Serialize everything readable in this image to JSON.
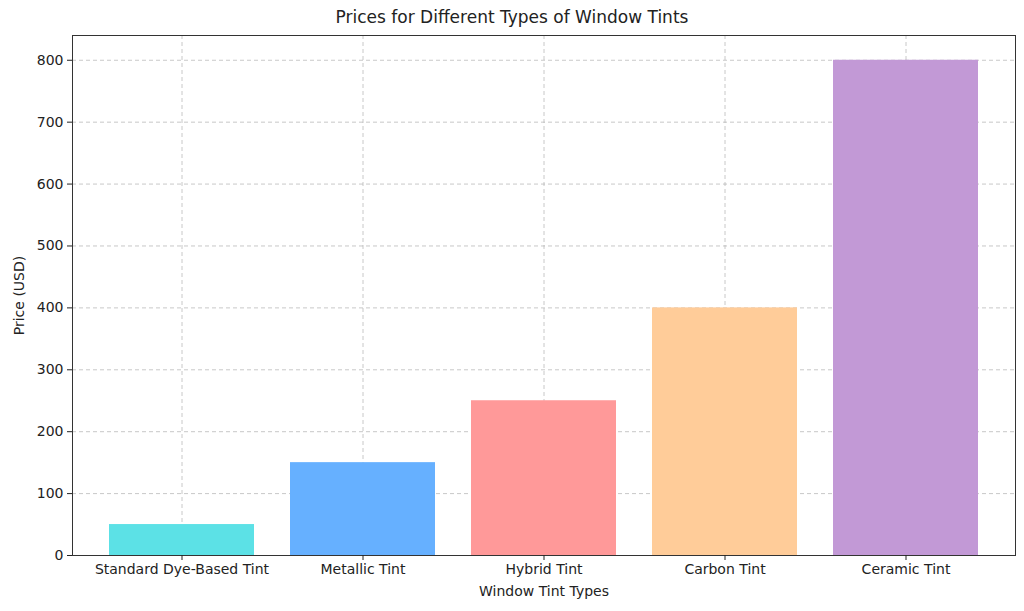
{
  "chart_data": {
    "type": "bar",
    "title": "Prices for Different Types of Window Tints",
    "x_label": "Window Tint Types",
    "y_label": "Price (USD)",
    "categories": [
      "Standard Dye-Based Tint",
      "Metallic Tint",
      "Hybrid Tint",
      "Carbon Tint",
      "Ceramic Tint"
    ],
    "values": [
      50,
      150,
      250,
      400,
      800
    ],
    "colors": [
      "#5ce1e6",
      "#66b0ff",
      "#ff9999",
      "#ffcc99",
      "#c299d6"
    ],
    "ylim": [
      0,
      840
    ],
    "yticks": [
      0,
      100,
      200,
      300,
      400,
      500,
      600,
      700,
      800
    ],
    "grid": true
  }
}
